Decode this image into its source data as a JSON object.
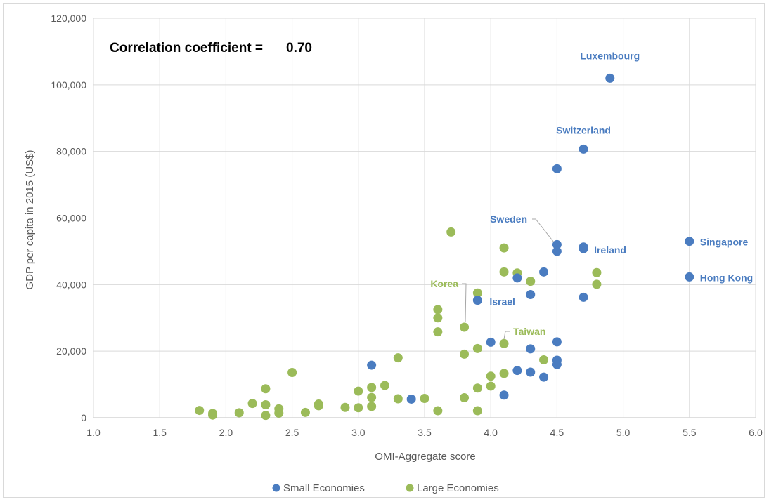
{
  "chart_data": {
    "type": "scatter",
    "xlabel": "OMI-Aggregate score",
    "ylabel": "GDP per capita in 2015 (US$)",
    "xlim": [
      1.0,
      6.0
    ],
    "ylim": [
      0,
      120000
    ],
    "x_ticks": [
      "1.0",
      "1.5",
      "2.0",
      "2.5",
      "3.0",
      "3.5",
      "4.0",
      "4.5",
      "5.0",
      "5.5",
      "6.0"
    ],
    "y_ticks": [
      "0",
      "20,000",
      "40,000",
      "60,000",
      "80,000",
      "100,000",
      "120,000"
    ],
    "grid": "on",
    "legend_placement": "bottom",
    "annotation": {
      "label": "Correlation coefficient =",
      "value": "0.70"
    },
    "series": [
      {
        "name": "Small Economies",
        "color": "#4a7cc0",
        "points": [
          {
            "x": 4.9,
            "y": 102000,
            "label": "Luxembourg"
          },
          {
            "x": 4.7,
            "y": 80700,
            "label": "Switzerland"
          },
          {
            "x": 4.5,
            "y": 74800
          },
          {
            "x": 4.5,
            "y": 52000,
            "label": "Sweden"
          },
          {
            "x": 4.5,
            "y": 50000
          },
          {
            "x": 4.7,
            "y": 51300
          },
          {
            "x": 4.7,
            "y": 50800,
            "label": "Ireland"
          },
          {
            "x": 5.5,
            "y": 53000,
            "label": "Singapore"
          },
          {
            "x": 5.5,
            "y": 42300,
            "label": "Hong Kong"
          },
          {
            "x": 4.4,
            "y": 43800
          },
          {
            "x": 4.2,
            "y": 42000
          },
          {
            "x": 4.3,
            "y": 37000
          },
          {
            "x": 4.7,
            "y": 36200
          },
          {
            "x": 3.9,
            "y": 35300,
            "label": "Israel"
          },
          {
            "x": 4.0,
            "y": 22700
          },
          {
            "x": 4.5,
            "y": 22800
          },
          {
            "x": 4.3,
            "y": 20700
          },
          {
            "x": 4.5,
            "y": 17300
          },
          {
            "x": 4.5,
            "y": 16000
          },
          {
            "x": 3.1,
            "y": 15800
          },
          {
            "x": 4.2,
            "y": 14200
          },
          {
            "x": 4.3,
            "y": 13700
          },
          {
            "x": 4.4,
            "y": 12200
          },
          {
            "x": 4.1,
            "y": 6800
          },
          {
            "x": 3.4,
            "y": 5600
          }
        ]
      },
      {
        "name": "Large Economies",
        "color": "#9bbb59",
        "points": [
          {
            "x": 3.7,
            "y": 55800
          },
          {
            "x": 4.1,
            "y": 51000
          },
          {
            "x": 4.1,
            "y": 43800
          },
          {
            "x": 4.2,
            "y": 43500
          },
          {
            "x": 4.8,
            "y": 43600
          },
          {
            "x": 4.3,
            "y": 41000
          },
          {
            "x": 4.8,
            "y": 40100
          },
          {
            "x": 3.9,
            "y": 37500
          },
          {
            "x": 3.6,
            "y": 32500
          },
          {
            "x": 3.6,
            "y": 30000
          },
          {
            "x": 3.8,
            "y": 27200,
            "label": "Korea"
          },
          {
            "x": 3.6,
            "y": 25800
          },
          {
            "x": 4.1,
            "y": 22300,
            "label": "Taiwan"
          },
          {
            "x": 3.9,
            "y": 20800
          },
          {
            "x": 3.8,
            "y": 19100
          },
          {
            "x": 3.3,
            "y": 18000
          },
          {
            "x": 4.4,
            "y": 17400
          },
          {
            "x": 2.5,
            "y": 13600
          },
          {
            "x": 4.1,
            "y": 13300
          },
          {
            "x": 4.0,
            "y": 12500
          },
          {
            "x": 3.2,
            "y": 9700
          },
          {
            "x": 4.0,
            "y": 9500
          },
          {
            "x": 3.1,
            "y": 9100
          },
          {
            "x": 3.9,
            "y": 8900
          },
          {
            "x": 2.3,
            "y": 8700
          },
          {
            "x": 3.0,
            "y": 8000
          },
          {
            "x": 3.1,
            "y": 6100
          },
          {
            "x": 3.8,
            "y": 6000
          },
          {
            "x": 3.3,
            "y": 5700
          },
          {
            "x": 3.5,
            "y": 5800
          },
          {
            "x": 2.2,
            "y": 4300
          },
          {
            "x": 2.7,
            "y": 4100
          },
          {
            "x": 2.3,
            "y": 3900
          },
          {
            "x": 2.7,
            "y": 3600
          },
          {
            "x": 3.1,
            "y": 3400
          },
          {
            "x": 2.9,
            "y": 3100
          },
          {
            "x": 3.0,
            "y": 3000
          },
          {
            "x": 2.4,
            "y": 2700
          },
          {
            "x": 1.8,
            "y": 2200
          },
          {
            "x": 3.6,
            "y": 2100
          },
          {
            "x": 3.9,
            "y": 2100
          },
          {
            "x": 2.6,
            "y": 1600
          },
          {
            "x": 2.1,
            "y": 1500
          },
          {
            "x": 2.4,
            "y": 1400
          },
          {
            "x": 1.9,
            "y": 1300
          },
          {
            "x": 1.9,
            "y": 800
          },
          {
            "x": 2.3,
            "y": 700
          }
        ]
      }
    ]
  }
}
